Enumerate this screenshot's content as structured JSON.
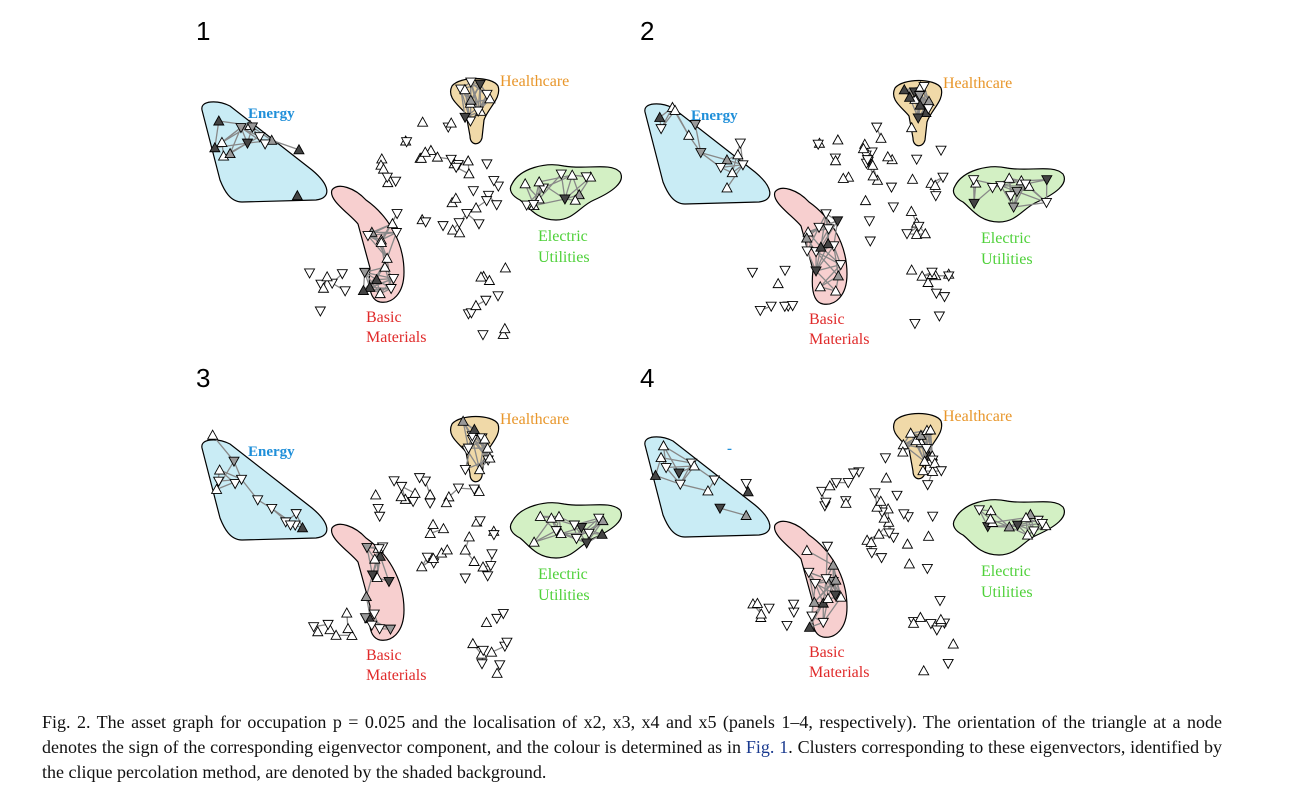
{
  "panels": [
    {
      "number": "1",
      "energy_label": "Energy"
    },
    {
      "number": "2",
      "energy_label": "Energy"
    },
    {
      "number": "3",
      "energy_label": "Energy"
    },
    {
      "number": "4",
      "energy_label": "-"
    }
  ],
  "cluster_labels": {
    "healthcare": "Healthcare",
    "basic_line1": "Basic",
    "basic_line2": "Materials",
    "electric_line1": "Electric",
    "electric_line2": "Utilities"
  },
  "colors": {
    "energy_fill": "#c9ecf5",
    "energy_text": "#1f8fd9",
    "healthcare_fill": "#f0d9a8",
    "healthcare_text": "#e8962a",
    "basic_fill": "#f7cfcf",
    "basic_text": "#e02a2a",
    "electric_fill": "#d3f0c4",
    "electric_text": "#4fd13a",
    "link": "#1a3a8f"
  },
  "caption": {
    "fig_label": "Fig. 2.",
    "text_part1": "The asset graph for occupation p = 0.025 and the localisation of x2, x3, x4 and x5 (panels 1–4, respectively). The orientation of the triangle at a node denotes the sign of the corresponding eigenvector component, and the colour is determined as in",
    "fig_ref": "Fig. 1",
    "text_part2": ". Clusters corresponding to these eigenvectors, identified by the clique percolation method, are denoted by the shaded background."
  }
}
